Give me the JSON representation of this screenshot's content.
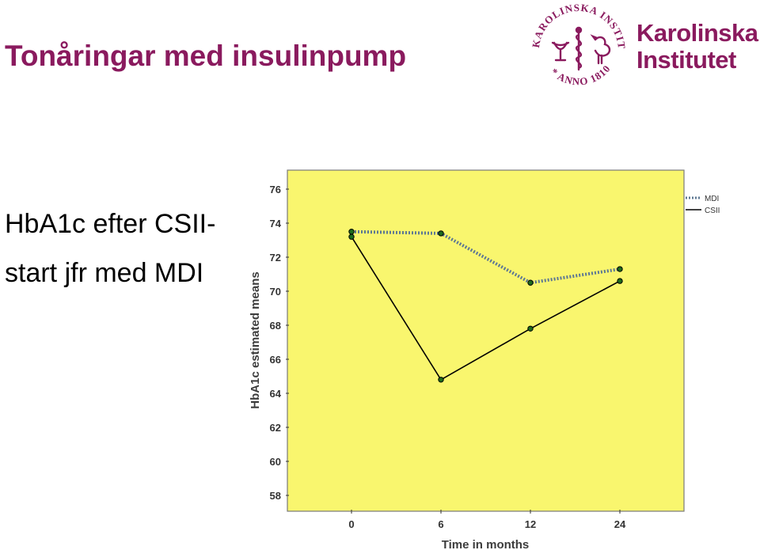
{
  "slide": {
    "title": "Tonåringar med insulinpump",
    "subtitle_line1": "HbA1c efter CSII-",
    "subtitle_line2": "start jfr med MDI"
  },
  "logo": {
    "name_line1": "Karolinska",
    "name_line2": "Institutet",
    "seal_text": "KAROLINSKA INSTITUTET * ANNO 1810 *"
  },
  "colors": {
    "brand": "#8a1a5e",
    "plot_background": "#f9f66e",
    "mdi_series": "#5e7893",
    "csii_series": "#000000",
    "marker_fill": "#1d6b1d"
  },
  "chart_data": {
    "type": "line",
    "title": "",
    "xlabel": "Time in months",
    "ylabel": "HbA1c estimated means",
    "x": [
      0,
      6,
      12,
      24
    ],
    "x_tick_labels": [
      "0",
      "6",
      "12",
      "24"
    ],
    "ylim": [
      58,
      76
    ],
    "y_ticks": [
      58,
      60,
      62,
      64,
      66,
      68,
      70,
      72,
      74,
      76
    ],
    "grid": false,
    "legend_position": "top-right",
    "series": [
      {
        "name": "MDI",
        "style": "dotted",
        "values": [
          73.5,
          73.4,
          70.5,
          71.3
        ]
      },
      {
        "name": "CSII",
        "style": "solid",
        "values": [
          73.2,
          64.8,
          67.8,
          70.6
        ]
      }
    ]
  }
}
